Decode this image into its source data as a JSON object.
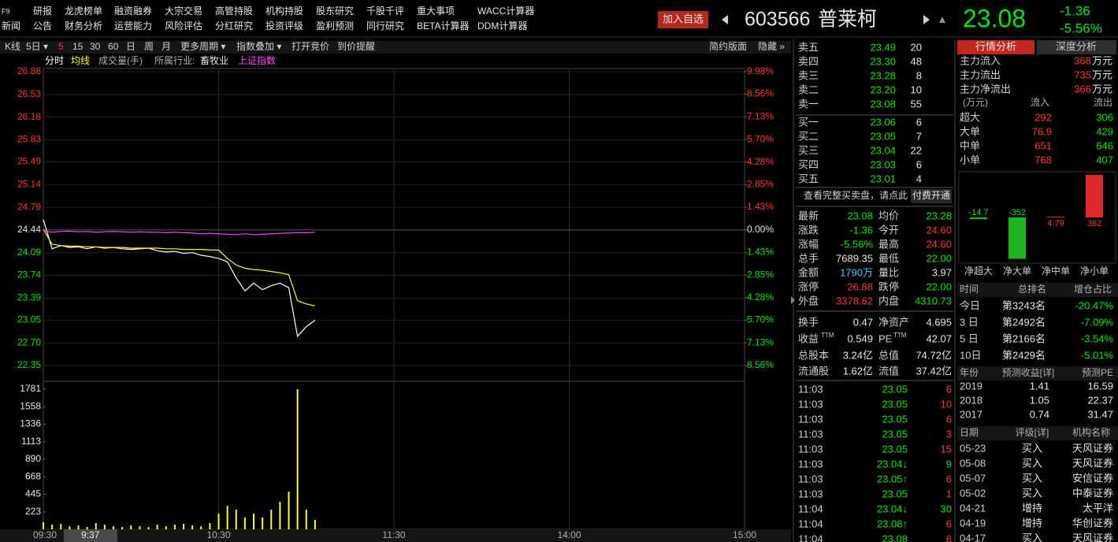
{
  "header": {
    "menu_row1": [
      "F9",
      "研报",
      "龙虎榜单",
      "融资融券",
      "大宗交易",
      "高管持股",
      "机构持股",
      "股东研究",
      "千股千评",
      "重大事项",
      "WACC计算器"
    ],
    "menu_row2": [
      "新闻",
      "公告",
      "财务分析",
      "运营能力",
      "风险评估",
      "分红研究",
      "投资评级",
      "盈利预测",
      "同行研究",
      "BETA计算器",
      "DDM计算器"
    ],
    "add_watch": "加入自选",
    "code": "603566",
    "name": "普莱柯",
    "price": "23.08",
    "change": "-1.36",
    "change_pct": "-5.56%"
  },
  "toolbar": {
    "left": [
      "K线",
      "5日 ▾",
      "5",
      "15",
      "30",
      "60",
      "日",
      "周",
      "月",
      "更多周期 ▾",
      "指数叠加 ▾",
      "打开竞价",
      "到价提醒"
    ],
    "right": [
      "简约版面",
      "隐藏 »"
    ]
  },
  "chart_header": {
    "industry_label": "所属行业:",
    "industry": "畜牧业"
  },
  "chart_data": [
    {
      "type": "line",
      "x": [
        "09:30",
        "09:33",
        "09:36",
        "09:39",
        "09:42",
        "09:45",
        "09:48",
        "09:51",
        "09:54",
        "09:57",
        "10:00",
        "10:03",
        "10:06",
        "10:09",
        "10:12",
        "10:15",
        "10:18",
        "10:21",
        "10:24",
        "10:27",
        "10:30",
        "10:33",
        "10:36",
        "10:39",
        "10:42",
        "10:45",
        "10:48",
        "10:51",
        "10:54",
        "10:57",
        "11:00",
        "11:03"
      ],
      "xlim": [
        "09:30",
        "15:00"
      ],
      "xticks": [
        "09:30",
        "10:30",
        "11:30",
        "14:00",
        "15:00"
      ],
      "cursor_label": "9:37",
      "ylim": [
        22.35,
        26.88
      ],
      "yticks": [
        26.88,
        26.53,
        26.18,
        25.83,
        25.49,
        25.14,
        24.79,
        24.44,
        24.09,
        23.74,
        23.39,
        23.05,
        {
          "value": 22.7,
          "label": "22.70"
        },
        22.35
      ],
      "y2lim": [
        -8.56,
        9.98
      ],
      "y2ticks": [
        {
          "value": 9.98,
          "label": "9.98%"
        },
        {
          "value": 8.56,
          "label": "8.56%"
        },
        {
          "value": 7.13,
          "label": "7.13%"
        },
        {
          "value": 5.7,
          "label": "5.70%"
        },
        {
          "value": 4.28,
          "label": "4.28%"
        },
        {
          "value": 2.85,
          "label": "2.85%"
        },
        {
          "value": 1.43,
          "label": "1.43%"
        },
        {
          "value": 0,
          "label": "0.00%"
        },
        {
          "value": -1.43,
          "label": "1.43%"
        },
        {
          "value": -2.85,
          "label": "2.85%"
        },
        {
          "value": -4.28,
          "label": "4.28%"
        },
        {
          "value": -5.7,
          "label": "5.70%"
        },
        {
          "value": -7.13,
          "label": "7.13%"
        },
        {
          "value": -8.56,
          "label": "8.56%"
        }
      ],
      "grid": true,
      "series": [
        {
          "name": "分时",
          "color": "#ffffff",
          "values": [
            24.6,
            24.15,
            24.2,
            24.17,
            24.18,
            24.15,
            24.18,
            24.16,
            24.17,
            24.15,
            24.14,
            24.15,
            24.16,
            24.12,
            24.1,
            24.11,
            24.08,
            24.09,
            24.05,
            24.03,
            24.0,
            23.95,
            23.7,
            23.5,
            23.62,
            23.52,
            23.58,
            23.62,
            23.55,
            22.8,
            22.95,
            23.05
          ]
        },
        {
          "name": "均线",
          "color": "#ffff00",
          "values": [
            24.45,
            24.22,
            24.2,
            24.19,
            24.19,
            24.18,
            24.18,
            24.17,
            24.17,
            24.17,
            24.16,
            24.16,
            24.16,
            24.16,
            24.15,
            24.15,
            24.14,
            24.14,
            24.14,
            24.13,
            24.13,
            24.0,
            23.9,
            23.85,
            23.83,
            23.82,
            23.8,
            23.78,
            23.75,
            23.35,
            23.3,
            23.27
          ]
        },
        {
          "name": "上证指数",
          "color": "#ff44ff",
          "axis": "y2",
          "values": [
            -0.05,
            -0.15,
            -0.1,
            -0.08,
            -0.12,
            -0.1,
            -0.15,
            -0.12,
            -0.1,
            -0.12,
            -0.15,
            -0.12,
            -0.15,
            -0.15,
            -0.18,
            -0.15,
            -0.18,
            -0.2,
            -0.25,
            -0.22,
            -0.25,
            -0.28,
            -0.3,
            -0.25,
            -0.3,
            -0.28,
            -0.25,
            -0.22,
            -0.2,
            -0.18,
            -0.18,
            -0.15
          ]
        }
      ]
    },
    {
      "type": "bar",
      "x": [
        "09:30",
        "09:33",
        "09:36",
        "09:39",
        "09:42",
        "09:45",
        "09:48",
        "09:51",
        "09:54",
        "09:57",
        "10:00",
        "10:03",
        "10:06",
        "10:09",
        "10:12",
        "10:15",
        "10:18",
        "10:21",
        "10:24",
        "10:27",
        "10:30",
        "10:33",
        "10:36",
        "10:39",
        "10:42",
        "10:45",
        "10:48",
        "10:51",
        "10:54",
        "10:57",
        "11:00",
        "11:03"
      ],
      "ylim": [
        0,
        1781
      ],
      "yticks": [
        1781,
        1558,
        1336,
        1113,
        890,
        668,
        445,
        223
      ],
      "series": [
        {
          "name": "成交量(手)",
          "color": "#ffff00",
          "values": [
            90,
            60,
            70,
            40,
            50,
            30,
            80,
            60,
            40,
            30,
            50,
            40,
            30,
            60,
            40,
            60,
            70,
            50,
            40,
            80,
            200,
            300,
            250,
            150,
            200,
            150,
            250,
            350,
            480,
            1781,
            250,
            120
          ]
        }
      ]
    }
  ],
  "order_book": {
    "asks": [
      [
        "卖五",
        "23.49",
        "20"
      ],
      [
        "卖四",
        "23.30",
        "48"
      ],
      [
        "卖三",
        "23.28",
        "8"
      ],
      [
        "卖二",
        "23.20",
        "10"
      ],
      [
        "卖一",
        "23.08",
        "55"
      ]
    ],
    "bids": [
      [
        "买一",
        "23.06",
        "6"
      ],
      [
        "买二",
        "23.05",
        "7"
      ],
      [
        "买三",
        "23.04",
        "22"
      ],
      [
        "买四",
        "23.03",
        "6"
      ],
      [
        "买五",
        "23.01",
        "4"
      ]
    ],
    "notice": "查看完整买卖盘，请点此",
    "notice_button": "付费开通"
  },
  "quote": [
    [
      "最新",
      "23.08",
      "均价",
      "23.28"
    ],
    [
      "涨跌",
      "-1.36",
      "今开",
      "24.60"
    ],
    [
      "涨幅",
      "-5.56%",
      "最高",
      "24.60"
    ],
    [
      "总手",
      "7689.35",
      "最低",
      "22.00"
    ],
    [
      "金额",
      "1790万",
      "量比",
      "3.97"
    ],
    [
      "涨停",
      "26.88",
      "跌停",
      "22.00"
    ],
    [
      "外盘",
      "3378.62",
      "内盘",
      "4310.73"
    ]
  ],
  "fundamentals": [
    {
      "l1": "换手",
      "v1": "0.47",
      "l2": "净资产",
      "v2": "4.695"
    },
    {
      "l1": "收益",
      "s1": "TTM",
      "v1": "0.549",
      "l2": "PE",
      "s2": "TTM",
      "v2": "42.07"
    },
    {
      "l1": "总股本",
      "v1": "3.24亿",
      "l2": "总值",
      "v2": "74.72亿"
    },
    {
      "l1": "流通股",
      "v1": "1.62亿",
      "l2": "流值",
      "v2": "37.42亿"
    }
  ],
  "trades": [
    [
      "11:03",
      "23.05",
      "6"
    ],
    [
      "11:03",
      "23.05",
      "10"
    ],
    [
      "11:03",
      "23.05",
      "6"
    ],
    [
      "11:03",
      "23.05",
      "3"
    ],
    [
      "11:03",
      "23.05",
      "15"
    ],
    [
      "11:03",
      "23.04↓",
      "9"
    ],
    [
      "11:03",
      "23.05↑",
      "6"
    ],
    [
      "11:03",
      "23.05",
      "1"
    ],
    [
      "11:04",
      "23.04↓",
      "30"
    ],
    [
      "11:04",
      "23.08↑",
      "6"
    ],
    [
      "11:04",
      "23.08",
      "6"
    ]
  ],
  "flow": {
    "tabs": [
      "行情分析",
      "深度分析"
    ],
    "main": [
      [
        "主力流入",
        "368",
        "万元"
      ],
      [
        "主力流出",
        "735",
        "万元"
      ],
      [
        "主力净流出",
        "366",
        "万元"
      ]
    ],
    "table_header": [
      "(万元)",
      "流入",
      "流出"
    ],
    "rows": [
      [
        "超大",
        "292",
        "306"
      ],
      [
        "大单",
        "76.9",
        "429"
      ],
      [
        "中单",
        "651",
        "646"
      ],
      [
        "小单",
        "768",
        "407"
      ]
    ]
  },
  "net_flow": {
    "type": "bar",
    "categories": [
      "净超大",
      "净大单",
      "净中单",
      "净小单"
    ],
    "values": [
      -14.7,
      -352,
      4.79,
      362
    ],
    "colors": {
      "positive": "#e02828",
      "negative": "#22b422"
    }
  },
  "ranking": {
    "header": [
      "时间",
      "总排名",
      "增仓占比"
    ],
    "rows": [
      [
        "今日",
        "第3243名",
        "-20.47%"
      ],
      [
        "3 日",
        "第2492名",
        "-7.09%"
      ],
      [
        "5 日",
        "第2166名",
        "-3.54%"
      ],
      [
        "10日",
        "第2429名",
        "-5.01%"
      ]
    ]
  },
  "forecast": {
    "header": [
      "年份",
      "预测收益[详]",
      "预测PE"
    ],
    "rows": [
      [
        "2019",
        "1.41",
        "16.59"
      ],
      [
        "2018",
        "1.05",
        "22.37"
      ],
      [
        "2017",
        "0.74",
        "31.47"
      ]
    ]
  },
  "ratings": {
    "header": [
      "日期",
      "评级[详]",
      "机构名称"
    ],
    "rows": [
      [
        "05-23",
        "买入",
        "天风证券"
      ],
      [
        "05-08",
        "买入",
        "天风证券"
      ],
      [
        "05-07",
        "买入",
        "安信证券"
      ],
      [
        "05-02",
        "买入",
        "中泰证券"
      ],
      [
        "04-21",
        "增持",
        "太平洋"
      ],
      [
        "04-19",
        "增持",
        "华创证券"
      ],
      [
        "04-17",
        "买入",
        "天风证券"
      ]
    ]
  }
}
